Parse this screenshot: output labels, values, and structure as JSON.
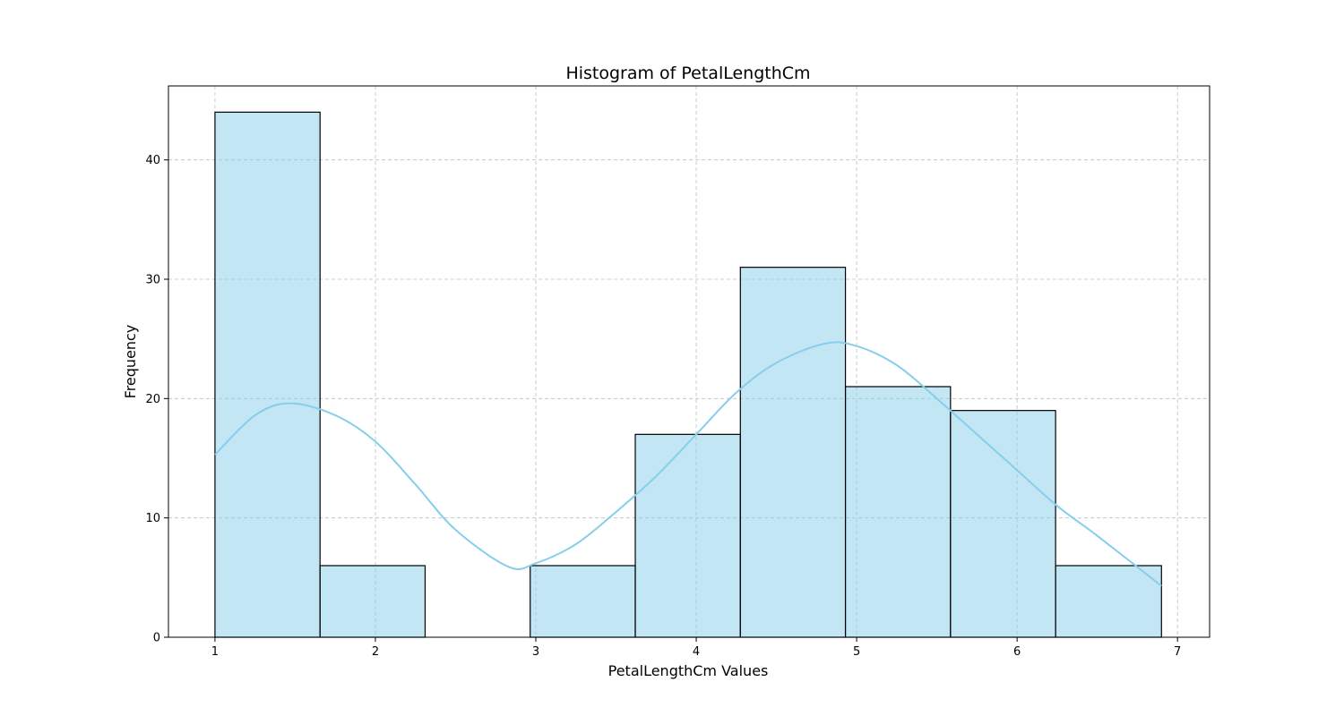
{
  "chart_data": {
    "type": "bar",
    "title": "Histogram of PetalLengthCm",
    "xlabel": "PetalLengthCm Values",
    "ylabel": "Frequency",
    "xlim": [
      0.71,
      7.2
    ],
    "ylim": [
      0,
      46.2
    ],
    "x_ticks": [
      1,
      2,
      3,
      4,
      5,
      6,
      7
    ],
    "y_ticks": [
      0,
      10,
      20,
      30,
      40
    ],
    "grid": true,
    "bar_color": "#87ceeb",
    "edge_color": "#000000",
    "bins": [
      {
        "start": 1.0,
        "end": 1.655,
        "count": 44
      },
      {
        "start": 1.655,
        "end": 2.31,
        "count": 6
      },
      {
        "start": 2.31,
        "end": 2.965,
        "count": 0
      },
      {
        "start": 2.965,
        "end": 3.62,
        "count": 6
      },
      {
        "start": 3.62,
        "end": 4.275,
        "count": 17
      },
      {
        "start": 4.275,
        "end": 4.93,
        "count": 31
      },
      {
        "start": 4.93,
        "end": 5.585,
        "count": 21
      },
      {
        "start": 5.585,
        "end": 6.24,
        "count": 19
      },
      {
        "start": 6.24,
        "end": 6.9,
        "count": 6
      }
    ],
    "kde": {
      "color": "#87ceeb",
      "x": [
        1.0,
        1.25,
        1.47,
        1.75,
        2.0,
        2.25,
        2.5,
        2.83,
        3.0,
        3.25,
        3.5,
        3.75,
        4.0,
        4.25,
        4.5,
        4.8,
        5.0,
        5.25,
        5.5,
        5.75,
        6.0,
        6.25,
        6.5,
        6.9
      ],
      "y": [
        15.3,
        18.6,
        19.6,
        18.6,
        16.4,
        12.8,
        9.0,
        5.9,
        6.2,
        7.8,
        10.5,
        13.5,
        17.0,
        20.5,
        23.0,
        24.6,
        24.4,
        22.8,
        20.0,
        17.0,
        14.0,
        11.0,
        8.5,
        4.3
      ]
    }
  }
}
